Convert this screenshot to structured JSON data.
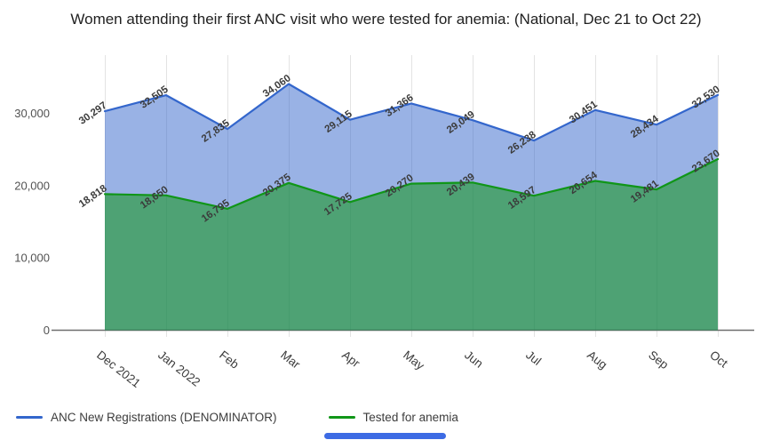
{
  "title": "Women attending their first ANC visit who were tested for anemia: (National, Dec 21 to Oct 22)",
  "chart_data": {
    "type": "area",
    "title": "Women attending their first ANC visit who were tested for anemia: (National, Dec 21 to Oct 22)",
    "categories": [
      "Dec 2021",
      "Jan 2022",
      "Feb",
      "Mar",
      "Apr",
      "May",
      "Jun",
      "Jul",
      "Aug",
      "Sep",
      "Oct"
    ],
    "series": [
      {
        "name": "ANC New Registrations (DENOMINATOR)",
        "color": "#3366cc",
        "fill_opacity": 0.5,
        "values": [
          30297,
          32505,
          27835,
          34060,
          29115,
          31366,
          29049,
          26238,
          30451,
          28434,
          32530
        ]
      },
      {
        "name": "Tested for anemia",
        "color": "#109618",
        "fill_opacity": 0.55,
        "values": [
          18818,
          18650,
          16795,
          20375,
          17725,
          20270,
          20439,
          18597,
          20654,
          19481,
          23670
        ]
      }
    ],
    "xlabel": "",
    "ylabel": "",
    "ylim": [
      0,
      35000
    ],
    "yticks": [
      0,
      10000,
      20000,
      30000
    ],
    "grid": "vertical",
    "legend_position": "bottom-left",
    "data_labels": true,
    "data_labels_rotated": true,
    "x_labels_rotated": true
  },
  "scrollbar": {
    "color": "#3d6be4"
  }
}
